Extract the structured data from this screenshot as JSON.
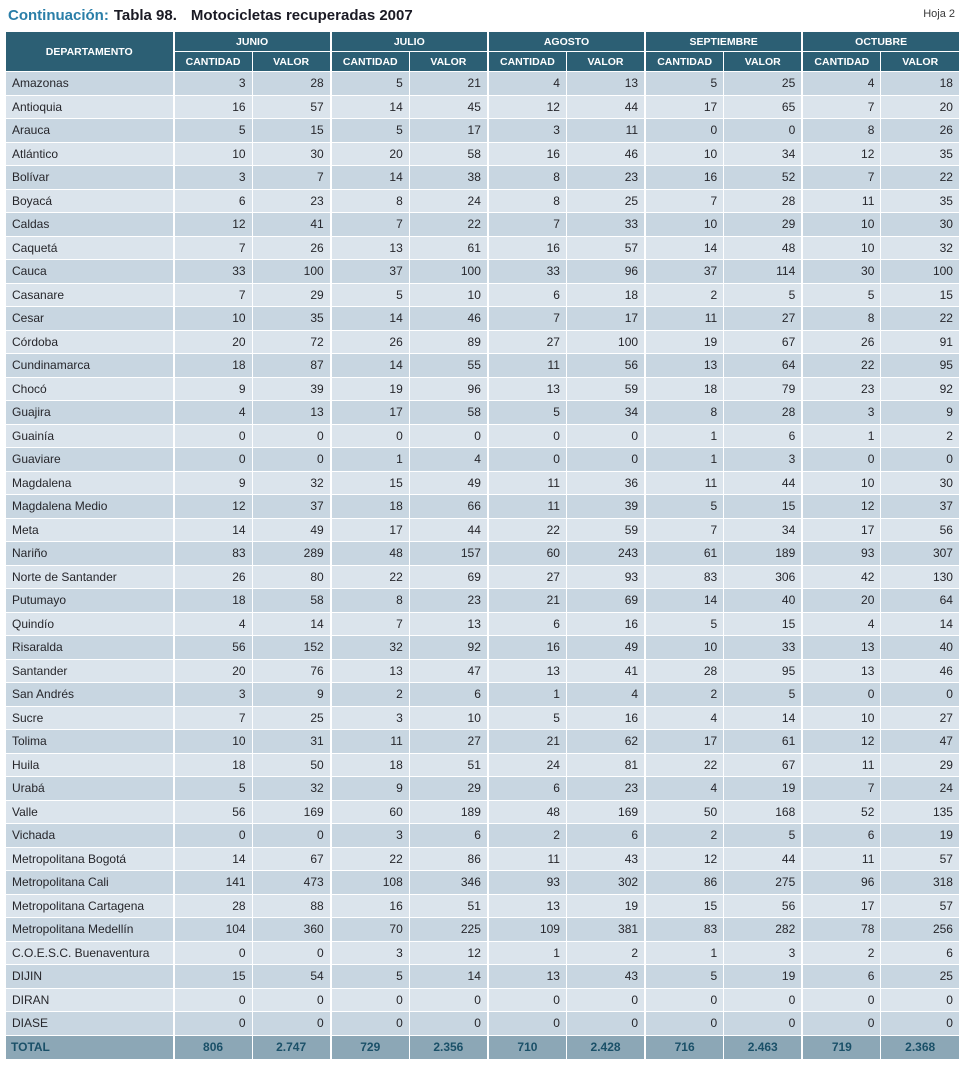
{
  "header": {
    "continuation_label": "Continuación:",
    "table_number": "Tabla 98.",
    "table_title": "Motocicletas recuperadas 2007",
    "sheet_label": "Hoja 2"
  },
  "table": {
    "department_column_header": "DEPARTAMENTO",
    "month_columns": [
      "JUNIO",
      "JULIO",
      "AGOSTO",
      "SEPTIEMBRE",
      "OCTUBRE"
    ],
    "subcolumns": [
      "CANTIDAD",
      "VALOR"
    ],
    "rows": [
      {
        "department": "Amazonas",
        "values": [
          3,
          28,
          5,
          21,
          4,
          13,
          5,
          25,
          4,
          18
        ]
      },
      {
        "department": "Antioquia",
        "values": [
          16,
          57,
          14,
          45,
          12,
          44,
          17,
          65,
          7,
          20
        ]
      },
      {
        "department": "Arauca",
        "values": [
          5,
          15,
          5,
          17,
          3,
          11,
          0,
          0,
          8,
          26
        ]
      },
      {
        "department": "Atlántico",
        "values": [
          10,
          30,
          20,
          58,
          16,
          46,
          10,
          34,
          12,
          35
        ]
      },
      {
        "department": "Bolívar",
        "values": [
          3,
          7,
          14,
          38,
          8,
          23,
          16,
          52,
          7,
          22
        ]
      },
      {
        "department": "Boyacá",
        "values": [
          6,
          23,
          8,
          24,
          8,
          25,
          7,
          28,
          11,
          35
        ]
      },
      {
        "department": "Caldas",
        "values": [
          12,
          41,
          7,
          22,
          7,
          33,
          10,
          29,
          10,
          30
        ]
      },
      {
        "department": "Caquetá",
        "values": [
          7,
          26,
          13,
          61,
          16,
          57,
          14,
          48,
          10,
          32
        ]
      },
      {
        "department": "Cauca",
        "values": [
          33,
          100,
          37,
          100,
          33,
          96,
          37,
          114,
          30,
          100
        ]
      },
      {
        "department": "Casanare",
        "values": [
          7,
          29,
          5,
          10,
          6,
          18,
          2,
          5,
          5,
          15
        ]
      },
      {
        "department": "Cesar",
        "values": [
          10,
          35,
          14,
          46,
          7,
          17,
          11,
          27,
          8,
          22
        ]
      },
      {
        "department": "Córdoba",
        "values": [
          20,
          72,
          26,
          89,
          27,
          100,
          19,
          67,
          26,
          91
        ]
      },
      {
        "department": "Cundinamarca",
        "values": [
          18,
          87,
          14,
          55,
          11,
          56,
          13,
          64,
          22,
          95
        ]
      },
      {
        "department": "Chocó",
        "values": [
          9,
          39,
          19,
          96,
          13,
          59,
          18,
          79,
          23,
          92
        ]
      },
      {
        "department": "Guajira",
        "values": [
          4,
          13,
          17,
          58,
          5,
          34,
          8,
          28,
          3,
          9
        ]
      },
      {
        "department": "Guainía",
        "values": [
          0,
          0,
          0,
          0,
          0,
          0,
          1,
          6,
          1,
          2
        ]
      },
      {
        "department": "Guaviare",
        "values": [
          0,
          0,
          1,
          4,
          0,
          0,
          1,
          3,
          0,
          0
        ]
      },
      {
        "department": "Magdalena",
        "values": [
          9,
          32,
          15,
          49,
          11,
          36,
          11,
          44,
          10,
          30
        ]
      },
      {
        "department": "Magdalena Medio",
        "values": [
          12,
          37,
          18,
          66,
          11,
          39,
          5,
          15,
          12,
          37
        ]
      },
      {
        "department": "Meta",
        "values": [
          14,
          49,
          17,
          44,
          22,
          59,
          7,
          34,
          17,
          56
        ]
      },
      {
        "department": "Nariño",
        "values": [
          83,
          289,
          48,
          157,
          60,
          243,
          61,
          189,
          93,
          307
        ]
      },
      {
        "department": "Norte de Santander",
        "values": [
          26,
          80,
          22,
          69,
          27,
          93,
          83,
          306,
          42,
          130
        ]
      },
      {
        "department": "Putumayo",
        "values": [
          18,
          58,
          8,
          23,
          21,
          69,
          14,
          40,
          20,
          64
        ]
      },
      {
        "department": "Quindío",
        "values": [
          4,
          14,
          7,
          13,
          6,
          16,
          5,
          15,
          4,
          14
        ]
      },
      {
        "department": "Risaralda",
        "values": [
          56,
          152,
          32,
          92,
          16,
          49,
          10,
          33,
          13,
          40
        ]
      },
      {
        "department": "Santander",
        "values": [
          20,
          76,
          13,
          47,
          13,
          41,
          28,
          95,
          13,
          46
        ]
      },
      {
        "department": "San Andrés",
        "values": [
          3,
          9,
          2,
          6,
          1,
          4,
          2,
          5,
          0,
          0
        ]
      },
      {
        "department": "Sucre",
        "values": [
          7,
          25,
          3,
          10,
          5,
          16,
          4,
          14,
          10,
          27
        ]
      },
      {
        "department": "Tolima",
        "values": [
          10,
          31,
          11,
          27,
          21,
          62,
          17,
          61,
          12,
          47
        ]
      },
      {
        "department": "Huila",
        "values": [
          18,
          50,
          18,
          51,
          24,
          81,
          22,
          67,
          11,
          29
        ]
      },
      {
        "department": "Urabá",
        "values": [
          5,
          32,
          9,
          29,
          6,
          23,
          4,
          19,
          7,
          24
        ]
      },
      {
        "department": "Valle",
        "values": [
          56,
          169,
          60,
          189,
          48,
          169,
          50,
          168,
          52,
          135
        ]
      },
      {
        "department": "Vichada",
        "values": [
          0,
          0,
          3,
          6,
          2,
          6,
          2,
          5,
          6,
          19
        ]
      },
      {
        "department": "Metropolitana Bogotá",
        "values": [
          14,
          67,
          22,
          86,
          11,
          43,
          12,
          44,
          11,
          57
        ]
      },
      {
        "department": "Metropolitana Cali",
        "values": [
          141,
          473,
          108,
          346,
          93,
          302,
          86,
          275,
          96,
          318
        ]
      },
      {
        "department": "Metropolitana Cartagena",
        "values": [
          28,
          88,
          16,
          51,
          13,
          19,
          15,
          56,
          17,
          57
        ]
      },
      {
        "department": "Metropolitana Medellín",
        "values": [
          104,
          360,
          70,
          225,
          109,
          381,
          83,
          282,
          78,
          256
        ]
      },
      {
        "department": "C.O.E.S.C. Buenaventura",
        "values": [
          0,
          0,
          3,
          12,
          1,
          2,
          1,
          3,
          2,
          6
        ]
      },
      {
        "department": "DIJIN",
        "values": [
          15,
          54,
          5,
          14,
          13,
          43,
          5,
          19,
          6,
          25
        ]
      },
      {
        "department": "DIRAN",
        "values": [
          0,
          0,
          0,
          0,
          0,
          0,
          0,
          0,
          0,
          0
        ]
      },
      {
        "department": "DIASE",
        "values": [
          0,
          0,
          0,
          0,
          0,
          0,
          0,
          0,
          0,
          0
        ]
      }
    ],
    "total_row": {
      "label": "TOTAL",
      "values": [
        "806",
        "2.747",
        "729",
        "2.356",
        "710",
        "2.428",
        "716",
        "2.463",
        "719",
        "2.368"
      ]
    }
  },
  "colors": {
    "header_bg": "#2c5f74",
    "row_dark": "#c8d6e1",
    "row_light": "#dbe4ec",
    "total_bg": "#8ca7b6",
    "total_text": "#1a5068",
    "title_accent": "#2a7ea8"
  }
}
